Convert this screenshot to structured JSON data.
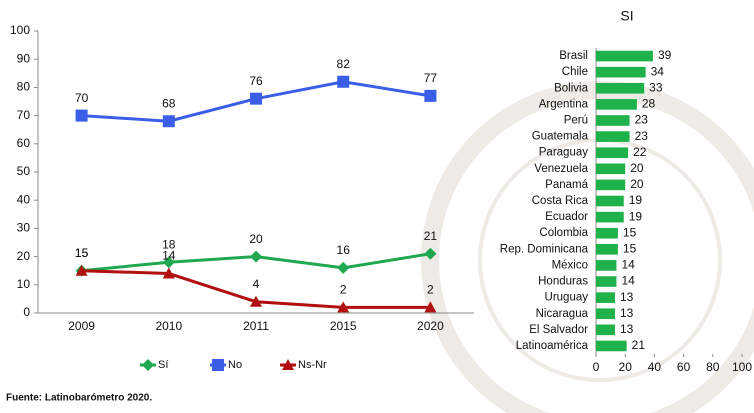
{
  "chart_data": [
    {
      "type": "line",
      "categories": [
        "2009",
        "2010",
        "2011",
        "2015",
        "2020"
      ],
      "series": [
        {
          "name": "Sí",
          "color": "#1fa84f",
          "marker": "diamond",
          "values": [
            15,
            18,
            20,
            16,
            21
          ]
        },
        {
          "name": "No",
          "color": "#3b5ee8",
          "marker": "square",
          "values": [
            70,
            68,
            76,
            82,
            77
          ]
        },
        {
          "name": "Ns-Nr",
          "color": "#b01010",
          "marker": "triangle",
          "values": [
            15,
            14,
            4,
            2,
            2
          ]
        }
      ],
      "ylim": [
        0,
        100
      ],
      "yticks": [
        0,
        10,
        20,
        30,
        40,
        50,
        60,
        70,
        80,
        90,
        100
      ],
      "legend": "bottom"
    },
    {
      "type": "barh",
      "title": "SI",
      "categories": [
        "Brasil",
        "Chile",
        "Bolivia",
        "Argentina",
        "Perú",
        "Guatemala",
        "Paraguay",
        "Venezuela",
        "Panamá",
        "Costa Rica",
        "Ecuador",
        "Colombia",
        "Rep. Dominicana",
        "México",
        "Honduras",
        "Uruguay",
        "Nicaragua",
        "El Salvador",
        "Latinoamérica"
      ],
      "values": [
        39,
        34,
        33,
        28,
        23,
        23,
        22,
        20,
        20,
        19,
        19,
        15,
        15,
        14,
        14,
        13,
        13,
        13,
        21
      ],
      "color": "#1fb14a",
      "xlim": [
        0,
        100
      ],
      "xticks": [
        0,
        20,
        40,
        60,
        80,
        100
      ]
    }
  ],
  "source": "Fuente: Latinobarómetro 2020."
}
